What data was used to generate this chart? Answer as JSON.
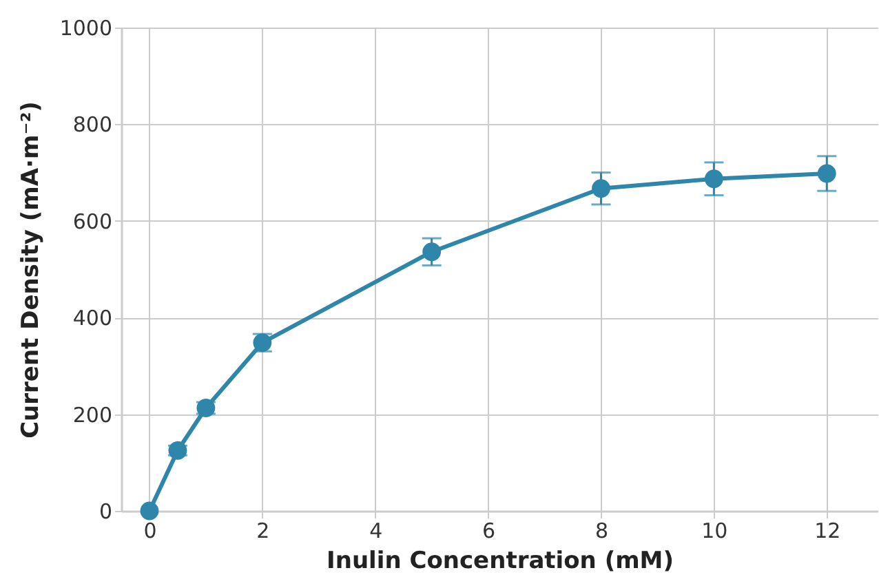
{
  "chart_data": {
    "type": "line",
    "xlabel": "Inulin Concentration (mM)",
    "ylabel": "Current Density (mA·m⁻²)",
    "x": [
      0,
      0.5,
      1,
      2,
      5,
      8,
      10,
      12
    ],
    "series": [
      {
        "color": "#2e86ab",
        "values": [
          0,
          125,
          213,
          348,
          536,
          667,
          687,
          698
        ],
        "errors": [
          null,
          10,
          12,
          18,
          28,
          33,
          34,
          36
        ]
      }
    ],
    "xlim": [
      -0.5,
      12.9
    ],
    "xticks": [
      0,
      2,
      4,
      6,
      8,
      10,
      12
    ],
    "ylim": [
      0,
      1000
    ],
    "yticks": [
      0,
      200,
      400,
      600,
      800,
      1000
    ],
    "grid": true,
    "marker": "circle",
    "line_style": "solid"
  }
}
